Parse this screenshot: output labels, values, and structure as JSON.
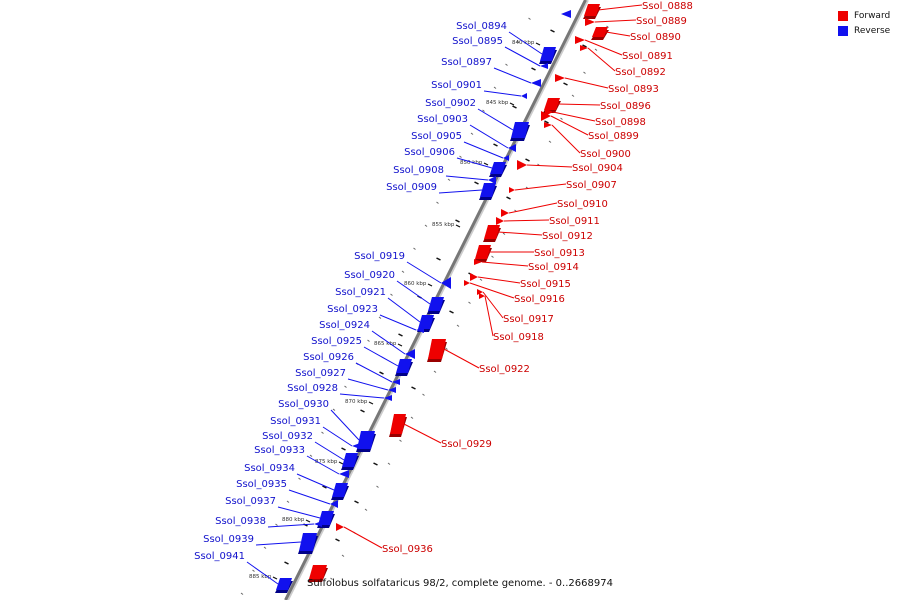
{
  "legend": {
    "forward": {
      "label": "Forward",
      "color": "#ee0000"
    },
    "reverse": {
      "label": "Reverse",
      "color": "#1111ee"
    }
  },
  "caption": "Sulfolobus solfataricus 98/2, complete genome. - 0..2668974",
  "ticks": [
    "840 kbp",
    "845 kbp",
    "850 kbp",
    "855 kbp",
    "860 kbp",
    "865 kbp",
    "870 kbp",
    "875 kbp",
    "880 kbp",
    "885 kbp"
  ],
  "forward_genes": [
    "Ssol_0888",
    "Ssol_0889",
    "Ssol_0890",
    "Ssol_0891",
    "Ssol_0892",
    "Ssol_0893",
    "Ssol_0896",
    "Ssol_0898",
    "Ssol_0899",
    "Ssol_0900",
    "Ssol_0904",
    "Ssol_0907",
    "Ssol_0910",
    "Ssol_0911",
    "Ssol_0912",
    "Ssol_0913",
    "Ssol_0914",
    "Ssol_0915",
    "Ssol_0916",
    "Ssol_0917",
    "Ssol_0918",
    "Ssol_0922",
    "Ssol_0929",
    "Ssol_0936"
  ],
  "reverse_genes": [
    "Ssol_0894",
    "Ssol_0895",
    "Ssol_0897",
    "Ssol_0901",
    "Ssol_0902",
    "Ssol_0903",
    "Ssol_0905",
    "Ssol_0906",
    "Ssol_0908",
    "Ssol_0909",
    "Ssol_0919",
    "Ssol_0920",
    "Ssol_0921",
    "Ssol_0923",
    "Ssol_0924",
    "Ssol_0925",
    "Ssol_0926",
    "Ssol_0927",
    "Ssol_0928",
    "Ssol_0930",
    "Ssol_0931",
    "Ssol_0932",
    "Ssol_0933",
    "Ssol_0934",
    "Ssol_0935",
    "Ssol_0937",
    "Ssol_0938",
    "Ssol_0939",
    "Ssol_0941"
  ]
}
